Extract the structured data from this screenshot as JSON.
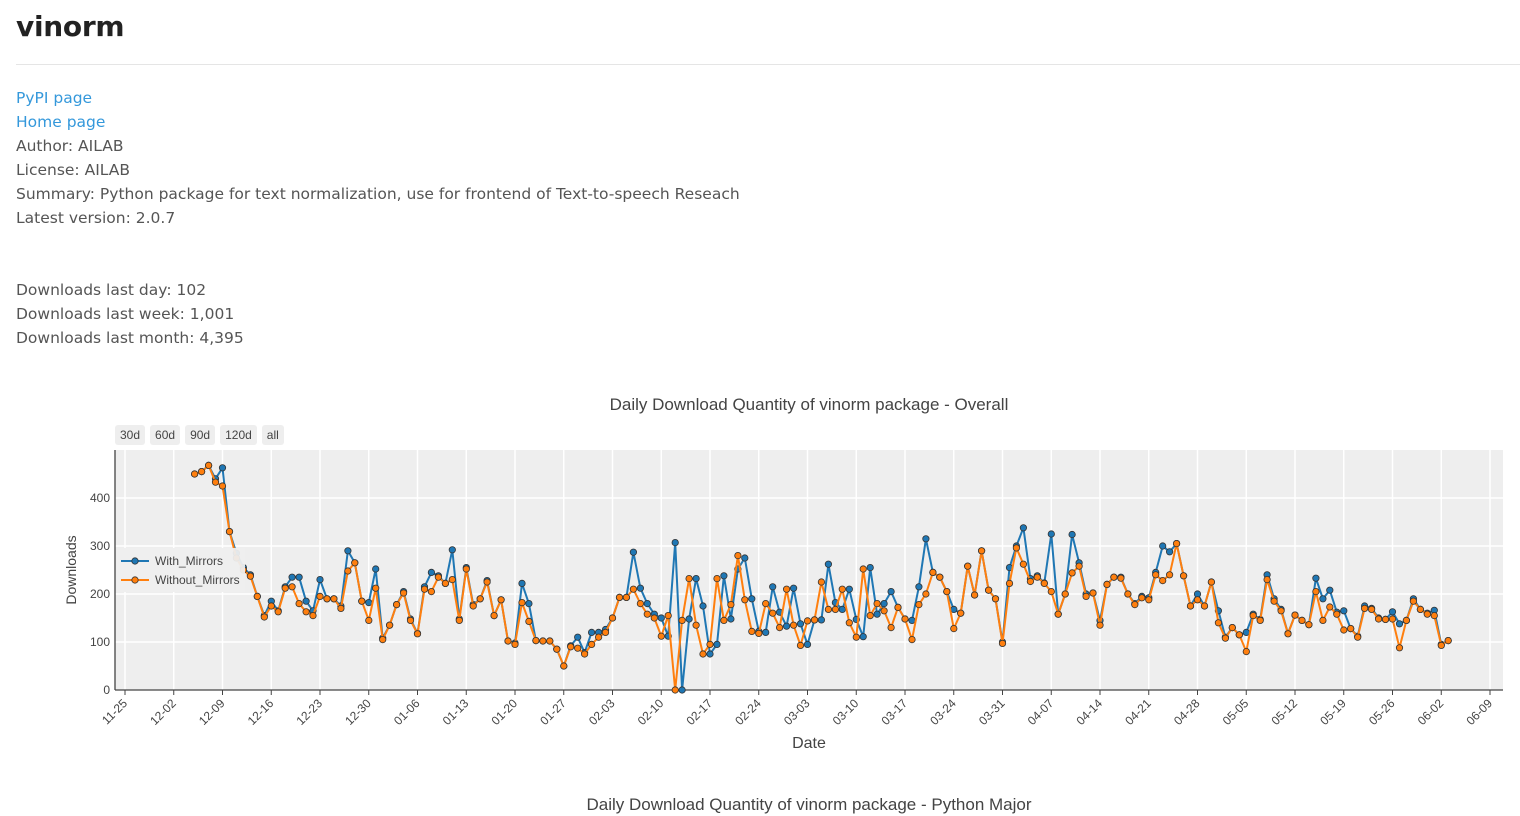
{
  "page": {
    "title": "vinorm",
    "links": {
      "pypi": "PyPI page",
      "home": "Home page"
    },
    "author": "Author: AILAB",
    "license": "License: AILAB",
    "summary": "Summary: Python package for text normalization, use for frontend of Text-to-speech Reseach",
    "latest_version": "Latest version: 2.0.7",
    "downloads": {
      "last_day": "Downloads last day: 102",
      "last_week": "Downloads last week: 1,001",
      "last_month": "Downloads last month: 4,395"
    }
  },
  "range_buttons": [
    "30d",
    "60d",
    "90d",
    "120d",
    "all"
  ],
  "colors": {
    "with_mirrors": "#1f77b4",
    "without_mirrors": "#ff7f0e",
    "plot_bg": "#eeeeee"
  },
  "chart_data": {
    "type": "line",
    "title": "Daily Download Quantity of vinorm package - Overall",
    "xlabel": "Date",
    "ylabel": "Downloads",
    "x_start": "12-05",
    "x_ticks": [
      "11-25",
      "12-02",
      "12-09",
      "12-16",
      "12-23",
      "12-30",
      "01-06",
      "01-13",
      "01-20",
      "01-27",
      "02-03",
      "02-10",
      "02-17",
      "02-24",
      "03-03",
      "03-10",
      "03-17",
      "03-24",
      "03-31",
      "04-07",
      "04-14",
      "04-21",
      "04-28",
      "05-05",
      "05-12",
      "05-19",
      "05-26",
      "06-02",
      "06-09"
    ],
    "y_ticks": [
      0,
      100,
      200,
      300,
      400
    ],
    "ylim": [
      0,
      500
    ],
    "legend_position": "left",
    "series": [
      {
        "name": "With_Mirrors",
        "values": [
          450,
          455,
          468,
          440,
          463,
          330,
          285,
          255,
          240,
          195,
          155,
          185,
          165,
          215,
          235,
          235,
          185,
          165,
          230,
          190,
          190,
          175,
          290,
          265,
          185,
          182,
          252,
          108,
          135,
          178,
          205,
          148,
          118,
          215,
          245,
          238,
          222,
          292,
          148,
          255,
          178,
          190,
          228,
          155,
          188,
          102,
          98,
          222,
          180,
          103,
          102,
          102,
          85,
          50,
          92,
          110,
          78,
          120,
          120,
          126,
          150,
          193,
          193,
          287,
          212,
          180,
          158,
          150,
          112,
          307,
          0,
          148,
          232,
          175,
          75,
          95,
          238,
          148,
          252,
          275,
          190,
          122,
          120,
          215,
          162,
          133,
          212,
          138,
          95,
          146,
          146,
          262,
          182,
          168,
          210,
          147,
          111,
          255,
          158,
          180,
          205,
          172,
          148,
          145,
          215,
          315,
          245,
          235,
          205,
          168,
          160,
          258,
          198,
          290,
          208,
          190,
          100,
          255,
          300,
          338,
          232,
          238,
          223,
          325,
          158,
          200,
          324,
          265,
          200,
          202,
          145,
          220,
          235,
          235,
          200,
          180,
          195,
          192,
          245,
          300,
          288,
          305,
          238,
          175,
          200,
          175,
          225,
          165,
          110,
          130,
          115,
          120,
          158,
          147,
          240,
          190,
          168,
          118,
          156,
          145,
          136,
          233,
          190,
          208,
          162,
          165,
          128,
          112,
          175,
          170,
          150,
          147,
          163,
          138,
          145,
          190,
          168,
          160,
          166,
          95,
          103
        ],
        "color": "#1f77b4"
      },
      {
        "name": "Without_Mirrors",
        "values": [
          450,
          455,
          468,
          433,
          425,
          330,
          275,
          250,
          237,
          195,
          152,
          175,
          163,
          212,
          215,
          180,
          163,
          155,
          195,
          190,
          190,
          170,
          248,
          265,
          185,
          145,
          212,
          105,
          135,
          178,
          202,
          145,
          117,
          210,
          205,
          235,
          222,
          230,
          145,
          252,
          175,
          190,
          225,
          155,
          188,
          102,
          95,
          182,
          143,
          103,
          102,
          102,
          85,
          50,
          90,
          87,
          75,
          95,
          110,
          120,
          150,
          193,
          193,
          210,
          180,
          158,
          150,
          112,
          155,
          0,
          145,
          232,
          135,
          75,
          95,
          232,
          145,
          178,
          280,
          188,
          122,
          118,
          180,
          160,
          130,
          210,
          135,
          93,
          144,
          146,
          225,
          168,
          168,
          210,
          140,
          110,
          252,
          155,
          180,
          165,
          130,
          172,
          148,
          105,
          178,
          200,
          245,
          235,
          205,
          128,
          160,
          258,
          198,
          290,
          208,
          190,
          97,
          222,
          296,
          262,
          226,
          235,
          222,
          205,
          158,
          200,
          244,
          258,
          195,
          202,
          135,
          220,
          235,
          233,
          200,
          178,
          192,
          188,
          240,
          228,
          240,
          305,
          238,
          175,
          188,
          175,
          225,
          140,
          108,
          130,
          115,
          80,
          155,
          145,
          230,
          185,
          165,
          117,
          156,
          145,
          136,
          205,
          145,
          173,
          158,
          125,
          128,
          110,
          170,
          168,
          148,
          147,
          148,
          88,
          145,
          185,
          168,
          158,
          155,
          93,
          103
        ],
        "color": "#ff7f0e"
      }
    ]
  },
  "second_chart": {
    "title": "Daily Download Quantity of vinorm package - Python Major"
  }
}
